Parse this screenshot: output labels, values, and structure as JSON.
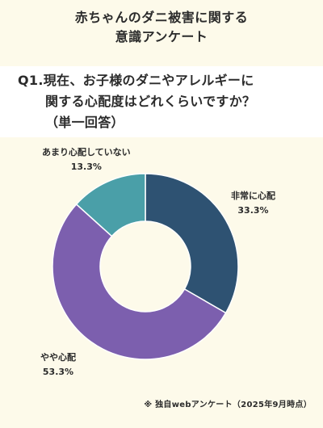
{
  "header": {
    "title_line1": "赤ちゃんのダニ被害に関する",
    "title_line2": "意識アンケート"
  },
  "question": {
    "line1": "Q1.現在、お子様のダニやアレルギーに",
    "line2": "関する心配度はどれくらいですか？",
    "line3": "（単一回答）"
  },
  "chart_data": {
    "type": "pie",
    "donut": true,
    "slices": [
      {
        "label": "非常に心配",
        "value": 33.3,
        "display": "33.3%",
        "color": "#2e5272"
      },
      {
        "label": "やや心配",
        "value": 53.3,
        "display": "53.3%",
        "color": "#7c5fae"
      },
      {
        "label": "あまり心配していない",
        "value": 13.3,
        "display": "13.3%",
        "color": "#4a9fa8"
      }
    ]
  },
  "footnote": "※ 独自webアンケート（2025年9月時点）"
}
